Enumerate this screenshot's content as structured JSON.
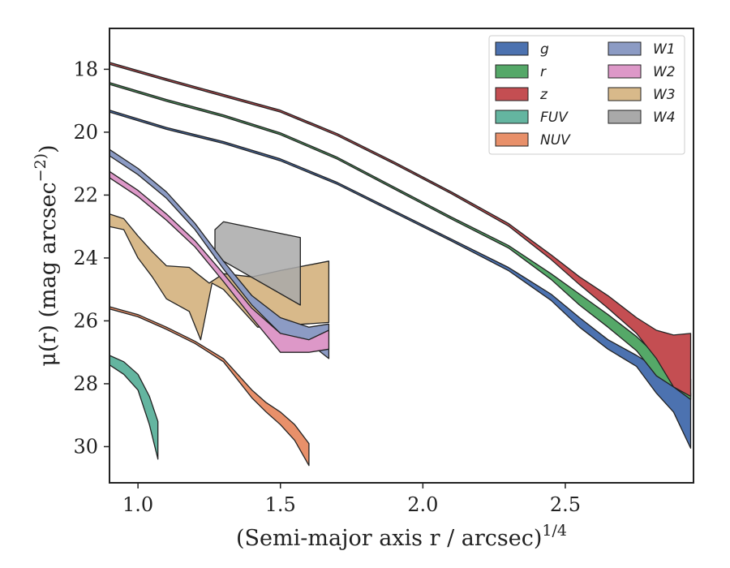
{
  "chart_data": {
    "type": "area",
    "xlabel": "(Semi-major axis r / arcsec)^1/4",
    "ylabel": "μ(r) (mag arcsec^−2)",
    "xlim": [
      0.9,
      2.95
    ],
    "ylim": [
      31.15,
      16.7
    ],
    "y_inverted": true,
    "grid": false,
    "legend_position": "top-right",
    "legend_columns": 2,
    "x_ticks": [
      1.0,
      1.5,
      2.0,
      2.5
    ],
    "x_tick_labels": [
      "1.0",
      "1.5",
      "2.0",
      "2.5"
    ],
    "y_ticks": [
      18,
      20,
      22,
      24,
      26,
      28,
      30
    ],
    "y_tick_labels": [
      "18",
      "20",
      "22",
      "24",
      "26",
      "28",
      "30"
    ],
    "series": [
      {
        "name": "g",
        "color": "#4c72b0",
        "upper": [
          [
            0.9,
            19.3
          ],
          [
            1.1,
            19.85
          ],
          [
            1.3,
            20.3
          ],
          [
            1.5,
            20.85
          ],
          [
            1.7,
            21.6
          ],
          [
            1.9,
            22.5
          ],
          [
            2.1,
            23.4
          ],
          [
            2.3,
            24.3
          ],
          [
            2.45,
            25.15
          ],
          [
            2.55,
            25.9
          ],
          [
            2.65,
            26.6
          ],
          [
            2.75,
            27.1
          ],
          [
            2.82,
            27.5
          ],
          [
            2.88,
            27.95
          ],
          [
            2.94,
            28.3
          ]
        ],
        "lower": [
          [
            0.9,
            19.36
          ],
          [
            1.1,
            19.91
          ],
          [
            1.3,
            20.36
          ],
          [
            1.5,
            20.91
          ],
          [
            1.7,
            21.66
          ],
          [
            1.9,
            22.56
          ],
          [
            2.1,
            23.46
          ],
          [
            2.3,
            24.4
          ],
          [
            2.45,
            25.35
          ],
          [
            2.55,
            26.2
          ],
          [
            2.65,
            26.9
          ],
          [
            2.75,
            27.45
          ],
          [
            2.82,
            28.3
          ],
          [
            2.88,
            28.9
          ],
          [
            2.94,
            30.05
          ]
        ]
      },
      {
        "name": "r",
        "color": "#55a868",
        "upper": [
          [
            0.9,
            18.42
          ],
          [
            1.1,
            18.96
          ],
          [
            1.3,
            19.45
          ],
          [
            1.5,
            20.02
          ],
          [
            1.7,
            20.8
          ],
          [
            1.9,
            21.75
          ],
          [
            2.1,
            22.7
          ],
          [
            2.3,
            23.6
          ],
          [
            2.45,
            24.5
          ],
          [
            2.55,
            25.15
          ],
          [
            2.65,
            25.8
          ],
          [
            2.75,
            26.5
          ],
          [
            2.82,
            27.1
          ],
          [
            2.88,
            27.55
          ],
          [
            2.94,
            27.85
          ]
        ],
        "lower": [
          [
            0.9,
            18.48
          ],
          [
            1.1,
            19.02
          ],
          [
            1.3,
            19.51
          ],
          [
            1.5,
            20.08
          ],
          [
            1.7,
            20.86
          ],
          [
            1.9,
            21.81
          ],
          [
            2.1,
            22.76
          ],
          [
            2.3,
            23.68
          ],
          [
            2.45,
            24.68
          ],
          [
            2.55,
            25.5
          ],
          [
            2.65,
            26.2
          ],
          [
            2.75,
            26.95
          ],
          [
            2.82,
            27.75
          ],
          [
            2.88,
            28.1
          ],
          [
            2.94,
            28.5
          ]
        ]
      },
      {
        "name": "z",
        "color": "#c44e52",
        "upper": [
          [
            0.9,
            17.78
          ],
          [
            1.1,
            18.3
          ],
          [
            1.3,
            18.8
          ],
          [
            1.5,
            19.3
          ],
          [
            1.7,
            20.05
          ],
          [
            1.9,
            20.95
          ],
          [
            2.1,
            21.9
          ],
          [
            2.3,
            22.9
          ],
          [
            2.45,
            23.9
          ],
          [
            2.55,
            24.6
          ],
          [
            2.65,
            25.2
          ],
          [
            2.75,
            25.9
          ],
          [
            2.82,
            26.3
          ],
          [
            2.88,
            26.45
          ],
          [
            2.94,
            26.4
          ]
        ],
        "lower": [
          [
            0.9,
            17.84
          ],
          [
            1.1,
            18.36
          ],
          [
            1.3,
            18.86
          ],
          [
            1.5,
            19.36
          ],
          [
            1.7,
            20.11
          ],
          [
            1.9,
            21.01
          ],
          [
            2.1,
            21.96
          ],
          [
            2.3,
            22.98
          ],
          [
            2.45,
            24.05
          ],
          [
            2.55,
            24.85
          ],
          [
            2.65,
            25.6
          ],
          [
            2.75,
            26.4
          ],
          [
            2.82,
            27.2
          ],
          [
            2.88,
            28.1
          ],
          [
            2.94,
            28.4
          ]
        ]
      },
      {
        "name": "FUV",
        "color": "#64b5a0",
        "upper": [
          [
            0.9,
            27.1
          ],
          [
            0.95,
            27.3
          ],
          [
            1.0,
            27.7
          ],
          [
            1.04,
            28.4
          ],
          [
            1.07,
            29.2
          ]
        ],
        "lower": [
          [
            0.9,
            27.4
          ],
          [
            0.95,
            27.7
          ],
          [
            1.0,
            28.2
          ],
          [
            1.04,
            29.3
          ],
          [
            1.07,
            30.4
          ]
        ]
      },
      {
        "name": "NUV",
        "color": "#e8906a",
        "upper": [
          [
            0.9,
            25.55
          ],
          [
            1.0,
            25.8
          ],
          [
            1.1,
            26.2
          ],
          [
            1.2,
            26.65
          ],
          [
            1.3,
            27.2
          ],
          [
            1.4,
            28.2
          ],
          [
            1.45,
            28.6
          ],
          [
            1.5,
            28.9
          ],
          [
            1.55,
            29.3
          ],
          [
            1.6,
            29.9
          ]
        ],
        "lower": [
          [
            0.9,
            25.62
          ],
          [
            1.0,
            25.87
          ],
          [
            1.1,
            26.27
          ],
          [
            1.2,
            26.72
          ],
          [
            1.3,
            27.3
          ],
          [
            1.4,
            28.45
          ],
          [
            1.45,
            28.9
          ],
          [
            1.5,
            29.3
          ],
          [
            1.55,
            29.8
          ],
          [
            1.6,
            30.6
          ]
        ]
      },
      {
        "name": "W1",
        "color": "#8c9bc4",
        "upper": [
          [
            0.9,
            20.55
          ],
          [
            1.0,
            21.15
          ],
          [
            1.1,
            21.9
          ],
          [
            1.2,
            22.9
          ],
          [
            1.3,
            24.1
          ],
          [
            1.4,
            25.2
          ],
          [
            1.5,
            25.9
          ],
          [
            1.6,
            26.2
          ],
          [
            1.67,
            26.1
          ]
        ],
        "lower": [
          [
            0.9,
            20.75
          ],
          [
            1.0,
            21.35
          ],
          [
            1.1,
            22.1
          ],
          [
            1.2,
            23.1
          ],
          [
            1.3,
            24.35
          ],
          [
            1.4,
            25.5
          ],
          [
            1.5,
            26.4
          ],
          [
            1.6,
            26.7
          ],
          [
            1.67,
            27.2
          ]
        ]
      },
      {
        "name": "W2",
        "color": "#dd98c8",
        "upper": [
          [
            0.9,
            21.25
          ],
          [
            1.0,
            21.85
          ],
          [
            1.1,
            22.6
          ],
          [
            1.2,
            23.45
          ],
          [
            1.3,
            24.5
          ],
          [
            1.4,
            25.6
          ],
          [
            1.5,
            26.4
          ],
          [
            1.6,
            26.6
          ],
          [
            1.67,
            26.3
          ]
        ],
        "lower": [
          [
            0.9,
            21.45
          ],
          [
            1.0,
            22.05
          ],
          [
            1.1,
            22.8
          ],
          [
            1.2,
            23.65
          ],
          [
            1.3,
            24.75
          ],
          [
            1.4,
            25.9
          ],
          [
            1.5,
            27.0
          ],
          [
            1.6,
            27.0
          ],
          [
            1.67,
            26.9
          ]
        ]
      },
      {
        "name": "W3",
        "color": "#d8b98a",
        "upper": [
          [
            0.9,
            22.6
          ],
          [
            0.95,
            22.75
          ],
          [
            1.0,
            23.3
          ],
          [
            1.05,
            23.8
          ],
          [
            1.1,
            24.25
          ],
          [
            1.18,
            24.3
          ],
          [
            1.25,
            24.8
          ],
          [
            1.3,
            24.5
          ],
          [
            1.4,
            24.6
          ],
          [
            1.5,
            24.4
          ],
          [
            1.67,
            24.1
          ]
        ],
        "lower": [
          [
            0.9,
            23.0
          ],
          [
            0.95,
            23.1
          ],
          [
            1.0,
            24.0
          ],
          [
            1.05,
            24.6
          ],
          [
            1.1,
            25.3
          ],
          [
            1.18,
            25.7
          ],
          [
            1.22,
            26.6
          ],
          [
            1.26,
            24.8
          ],
          [
            1.3,
            25.0
          ],
          [
            1.42,
            26.2
          ],
          [
            1.67,
            26.05
          ]
        ]
      },
      {
        "name": "W4",
        "color": "#a9a9a9",
        "upper": [
          [
            1.27,
            23.1
          ],
          [
            1.3,
            22.85
          ],
          [
            1.57,
            23.35
          ]
        ],
        "lower": [
          [
            1.27,
            24.0
          ],
          [
            1.3,
            24.1
          ],
          [
            1.57,
            25.5
          ]
        ]
      }
    ]
  }
}
